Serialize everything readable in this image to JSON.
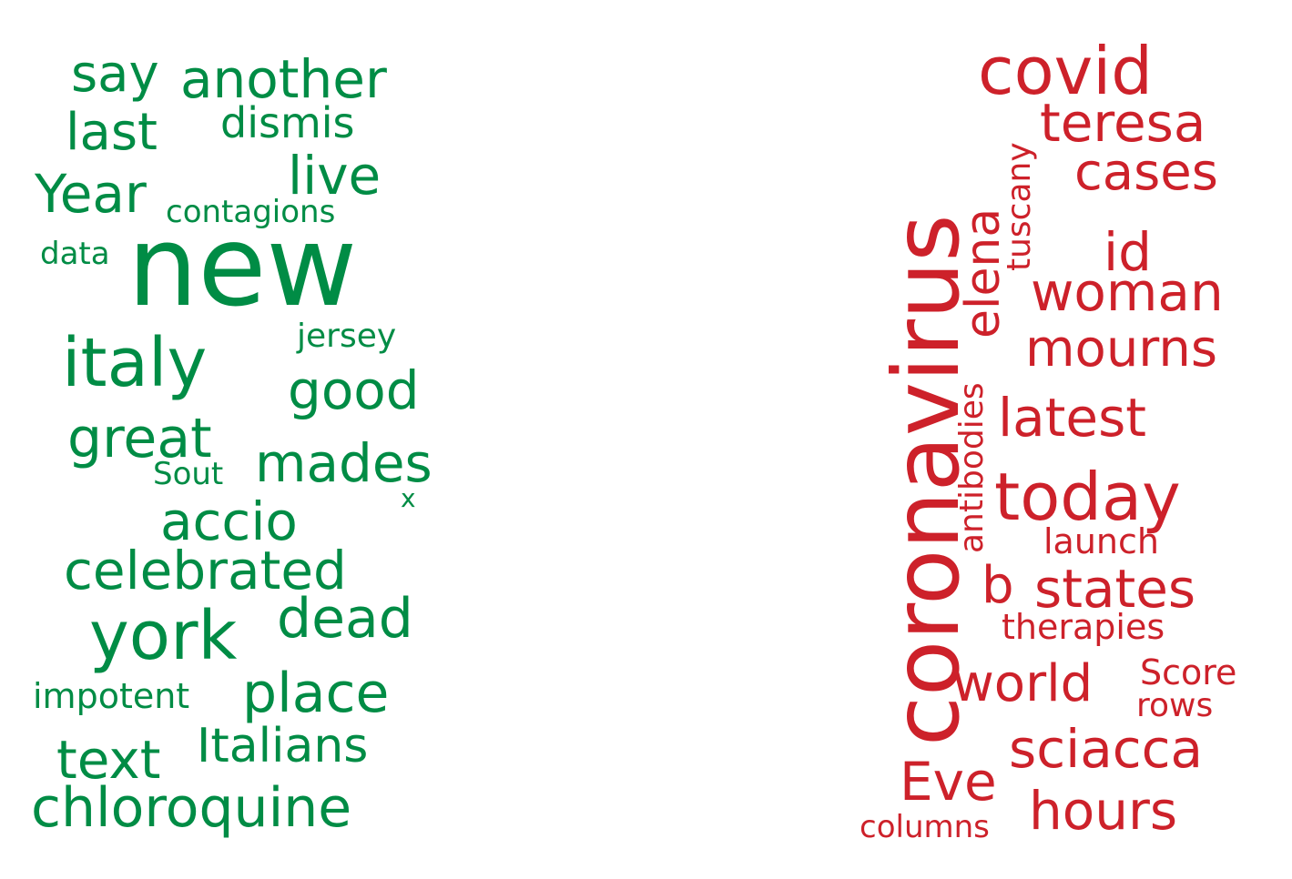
{
  "colors": {
    "left": "#008c45",
    "right": "#cd212a"
  },
  "left_words": [
    "say",
    "another",
    "last",
    "dismis",
    "live",
    "Year",
    "contagions",
    "data",
    "new",
    "jersey",
    "italy",
    "good",
    "great",
    "mades",
    "Sout",
    "x",
    "accio",
    "celebrated",
    "york",
    "dead",
    "impotent",
    "place",
    "text",
    "Italians",
    "chloroquine"
  ],
  "right_words": [
    "covid",
    "coronavirus",
    "teresa",
    "tuscany",
    "elena",
    "cases",
    "id",
    "woman",
    "mourns",
    "antibodies",
    "latest",
    "today",
    "launch",
    "b",
    "states",
    "therapies",
    "world",
    "Score",
    "rows",
    "sciacca",
    "Eve",
    "hours",
    "columns"
  ]
}
